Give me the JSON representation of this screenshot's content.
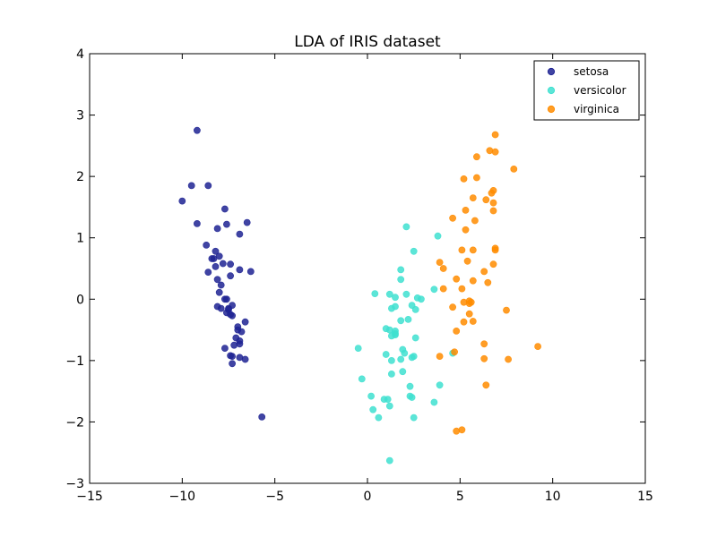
{
  "chart_data": {
    "type": "scatter",
    "title": "LDA of IRIS dataset",
    "xlabel": "",
    "ylabel": "",
    "xlim": [
      -15,
      15
    ],
    "ylim": [
      -3,
      4
    ],
    "xticks": [
      -15,
      -10,
      -5,
      0,
      5,
      10,
      15
    ],
    "yticks": [
      -3,
      -2,
      -1,
      0,
      1,
      2,
      3,
      4
    ],
    "xtick_labels": [
      "−15",
      "−10",
      "−5",
      "0",
      "5",
      "10",
      "15"
    ],
    "ytick_labels": [
      "−3",
      "−2",
      "−1",
      "0",
      "1",
      "2",
      "3",
      "4"
    ],
    "grid": false,
    "legend_position": "top-right",
    "series": [
      {
        "name": "setosa",
        "color": "#1f2393",
        "points": [
          [
            -9.2,
            2.75
          ],
          [
            -9.5,
            1.85
          ],
          [
            -8.6,
            1.85
          ],
          [
            -10.0,
            1.6
          ],
          [
            -7.7,
            1.47
          ],
          [
            -6.5,
            1.25
          ],
          [
            -9.2,
            1.23
          ],
          [
            -7.6,
            1.22
          ],
          [
            -8.1,
            1.15
          ],
          [
            -6.9,
            1.06
          ],
          [
            -8.7,
            0.88
          ],
          [
            -8.2,
            0.78
          ],
          [
            -8.3,
            0.66
          ],
          [
            -8.4,
            0.66
          ],
          [
            -8.0,
            0.7
          ],
          [
            -7.4,
            0.57
          ],
          [
            -7.8,
            0.58
          ],
          [
            -8.2,
            0.53
          ],
          [
            -6.9,
            0.48
          ],
          [
            -6.3,
            0.45
          ],
          [
            -8.6,
            0.44
          ],
          [
            -7.4,
            0.38
          ],
          [
            -8.1,
            0.32
          ],
          [
            -7.9,
            0.23
          ],
          [
            -8.0,
            0.11
          ],
          [
            -7.7,
            0.0
          ],
          [
            -7.6,
            0.0
          ],
          [
            -7.3,
            -0.1
          ],
          [
            -7.9,
            -0.15
          ],
          [
            -7.5,
            -0.17
          ],
          [
            -7.6,
            -0.22
          ],
          [
            -7.3,
            -0.27
          ],
          [
            -7.4,
            -0.25
          ],
          [
            -6.6,
            -0.37
          ],
          [
            -7.0,
            -0.5
          ],
          [
            -6.8,
            -0.53
          ],
          [
            -7.1,
            -0.63
          ],
          [
            -6.9,
            -0.68
          ],
          [
            -7.2,
            -0.75
          ],
          [
            -6.9,
            -0.73
          ],
          [
            -7.7,
            -0.8
          ],
          [
            -7.4,
            -0.92
          ],
          [
            -7.3,
            -0.93
          ],
          [
            -6.9,
            -0.95
          ],
          [
            -6.6,
            -0.98
          ],
          [
            -7.3,
            -1.05
          ],
          [
            -5.7,
            -1.92
          ],
          [
            -8.1,
            -0.12
          ],
          [
            -7.5,
            -0.15
          ],
          [
            -7.0,
            -0.45
          ]
        ]
      },
      {
        "name": "versicolor",
        "color": "#40e0d0",
        "points": [
          [
            2.1,
            1.18
          ],
          [
            3.8,
            1.03
          ],
          [
            2.5,
            0.78
          ],
          [
            1.8,
            0.48
          ],
          [
            1.8,
            0.32
          ],
          [
            3.6,
            0.16
          ],
          [
            0.4,
            0.09
          ],
          [
            1.2,
            0.08
          ],
          [
            2.1,
            0.08
          ],
          [
            1.5,
            0.03
          ],
          [
            2.7,
            0.02
          ],
          [
            2.9,
            0.0
          ],
          [
            2.4,
            -0.1
          ],
          [
            1.5,
            -0.12
          ],
          [
            2.6,
            -0.17
          ],
          [
            1.3,
            -0.15
          ],
          [
            1.8,
            -0.35
          ],
          [
            2.2,
            -0.33
          ],
          [
            1.0,
            -0.48
          ],
          [
            1.2,
            -0.5
          ],
          [
            1.5,
            -0.52
          ],
          [
            1.5,
            -0.56
          ],
          [
            1.5,
            -0.58
          ],
          [
            2.6,
            -0.63
          ],
          [
            1.3,
            -0.6
          ],
          [
            -0.5,
            -0.8
          ],
          [
            1.9,
            -0.82
          ],
          [
            2.0,
            -0.88
          ],
          [
            1.0,
            -0.9
          ],
          [
            2.5,
            -0.93
          ],
          [
            2.4,
            -0.95
          ],
          [
            1.8,
            -0.98
          ],
          [
            1.3,
            -1.0
          ],
          [
            4.6,
            -0.88
          ],
          [
            1.9,
            -1.18
          ],
          [
            1.3,
            -1.22
          ],
          [
            -0.3,
            -1.3
          ],
          [
            2.3,
            -1.42
          ],
          [
            3.9,
            -1.4
          ],
          [
            0.2,
            -1.58
          ],
          [
            2.3,
            -1.58
          ],
          [
            2.4,
            -1.6
          ],
          [
            0.9,
            -1.63
          ],
          [
            1.1,
            -1.63
          ],
          [
            3.6,
            -1.68
          ],
          [
            1.2,
            -1.74
          ],
          [
            0.3,
            -1.8
          ],
          [
            0.6,
            -1.93
          ],
          [
            2.5,
            -1.93
          ],
          [
            1.2,
            -2.63
          ]
        ]
      },
      {
        "name": "virginica",
        "color": "#ff8c00",
        "points": [
          [
            6.9,
            2.68
          ],
          [
            6.6,
            2.42
          ],
          [
            6.9,
            2.4
          ],
          [
            5.9,
            2.32
          ],
          [
            7.9,
            2.12
          ],
          [
            5.2,
            1.96
          ],
          [
            5.9,
            1.98
          ],
          [
            6.8,
            1.77
          ],
          [
            6.7,
            1.73
          ],
          [
            5.7,
            1.65
          ],
          [
            6.4,
            1.62
          ],
          [
            6.8,
            1.57
          ],
          [
            5.3,
            1.45
          ],
          [
            6.8,
            1.44
          ],
          [
            4.6,
            1.32
          ],
          [
            5.8,
            1.28
          ],
          [
            5.3,
            1.13
          ],
          [
            5.1,
            0.8
          ],
          [
            5.7,
            0.8
          ],
          [
            6.9,
            0.83
          ],
          [
            6.9,
            0.8
          ],
          [
            5.4,
            0.62
          ],
          [
            3.9,
            0.6
          ],
          [
            4.1,
            0.5
          ],
          [
            6.8,
            0.57
          ],
          [
            6.3,
            0.45
          ],
          [
            4.8,
            0.33
          ],
          [
            5.7,
            0.3
          ],
          [
            6.5,
            0.27
          ],
          [
            4.1,
            0.17
          ],
          [
            5.1,
            0.17
          ],
          [
            5.2,
            -0.05
          ],
          [
            5.6,
            -0.05
          ],
          [
            5.5,
            -0.07
          ],
          [
            4.6,
            -0.13
          ],
          [
            7.5,
            -0.18
          ],
          [
            5.5,
            -0.24
          ],
          [
            5.2,
            -0.37
          ],
          [
            5.7,
            -0.36
          ],
          [
            4.8,
            -0.52
          ],
          [
            6.3,
            -0.73
          ],
          [
            9.2,
            -0.77
          ],
          [
            4.7,
            -0.86
          ],
          [
            3.9,
            -0.93
          ],
          [
            6.3,
            -0.97
          ],
          [
            7.6,
            -0.98
          ],
          [
            6.4,
            -1.4
          ],
          [
            4.8,
            -2.15
          ],
          [
            5.1,
            -2.13
          ],
          [
            5.5,
            -0.03
          ]
        ]
      }
    ]
  }
}
